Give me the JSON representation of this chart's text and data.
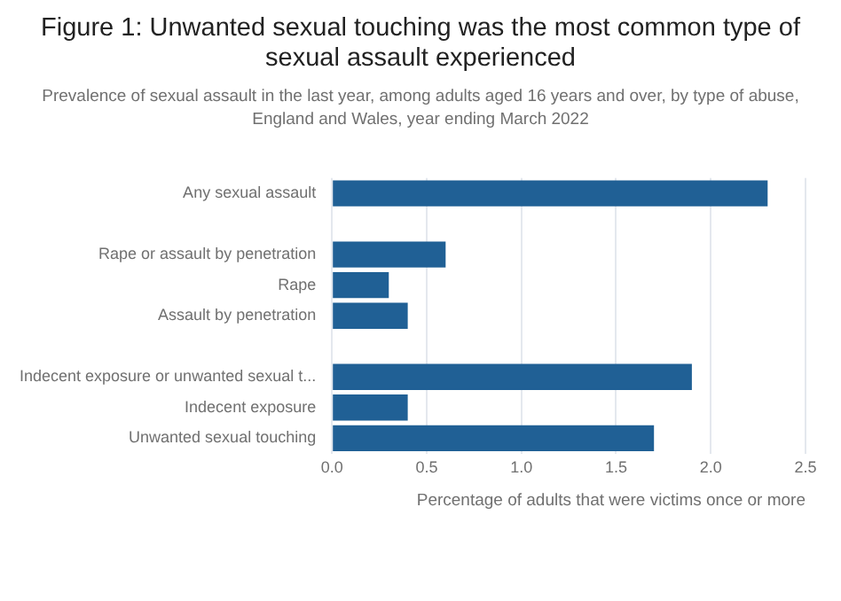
{
  "chart_data": {
    "type": "bar",
    "orientation": "horizontal",
    "title": "Figure 1: Unwanted sexual touching was the most common type of sexual assault experienced",
    "subtitle": "Prevalence of sexual assault in the last year, among adults aged 16 years and over, by type of abuse, England and Wales, year ending March 2022",
    "xlabel": "Percentage of adults that were victims once or more",
    "categories": [
      "Any sexual assault",
      null,
      "Rape or assault by penetration",
      "Rape",
      "Assault by penetration",
      null,
      "Indecent exposure or unwanted sexual t...",
      "Indecent exposure",
      "Unwanted sexual touching"
    ],
    "values": [
      2.3,
      null,
      0.6,
      0.3,
      0.4,
      null,
      1.9,
      0.4,
      1.7
    ],
    "color": "#206095",
    "xlim": [
      0,
      2.5
    ],
    "xticks": [
      {
        "value": 0,
        "label": "0.0"
      },
      {
        "value": 0.5,
        "label": "0.5"
      },
      {
        "value": 1,
        "label": "1.0"
      },
      {
        "value": 1.5,
        "label": "1.5"
      },
      {
        "value": 2,
        "label": "2.0"
      },
      {
        "value": 2.5,
        "label": "2.5"
      }
    ],
    "grid": "x",
    "legend": false
  }
}
